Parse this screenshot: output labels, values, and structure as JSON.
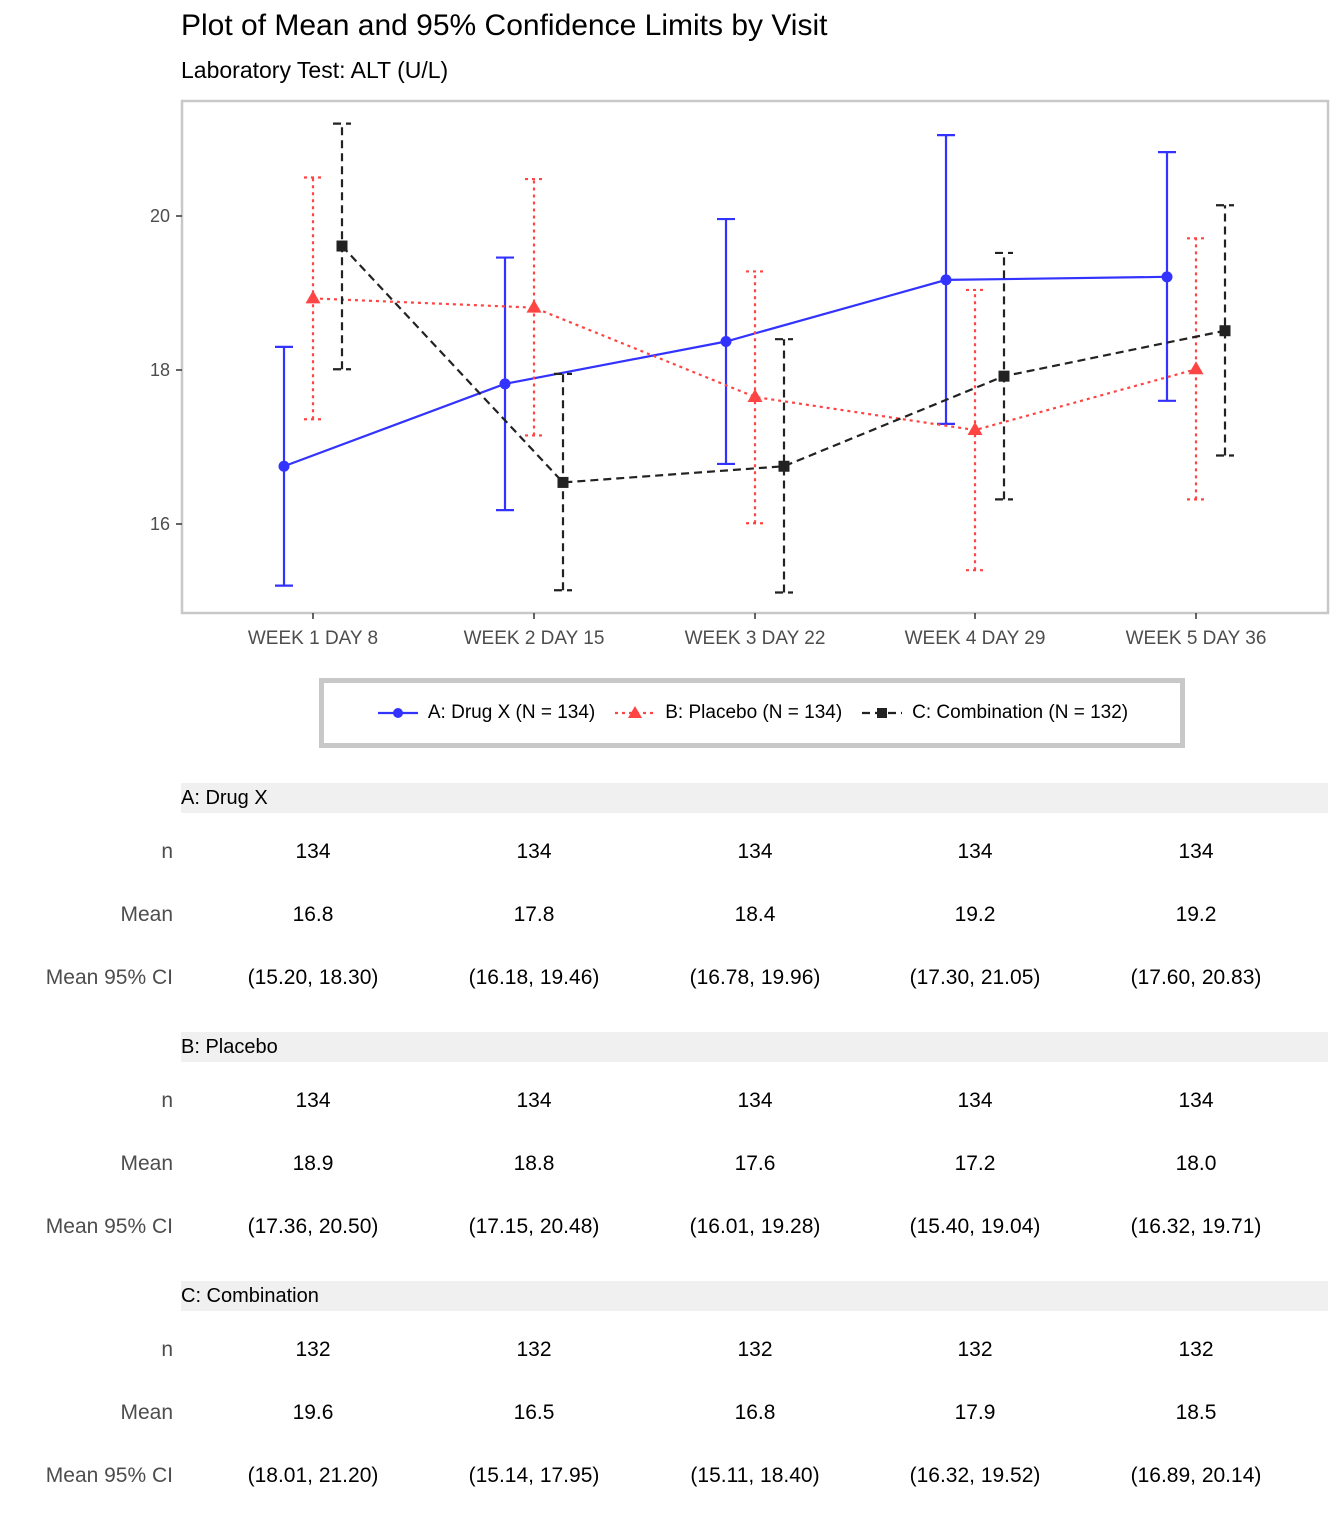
{
  "title": "Plot of Mean and 95% Confidence Limits by Visit",
  "subtitle": "Laboratory Test: ALT (U/L)",
  "chart_data": {
    "type": "line",
    "title": "Plot of Mean and 95% Confidence Limits by Visit",
    "subtitle": "Laboratory Test: ALT (U/L)",
    "xlabel": "",
    "ylabel": "",
    "categories": [
      "WEEK 1 DAY 8",
      "WEEK 2 DAY 15",
      "WEEK 3 DAY 22",
      "WEEK 4 DAY 29",
      "WEEK 5 DAY 36"
    ],
    "y_ticks": [
      "16",
      "18",
      "20"
    ],
    "ylim": [
      14.8,
      21.45
    ],
    "grid": false,
    "legend_position": "bottom",
    "error_bars": "95% confidence limits",
    "series": [
      {
        "name": "A: Drug X (N = 134)",
        "color": "#3333ff",
        "marker": "circle",
        "line_style": "solid",
        "values": [
          16.75,
          17.82,
          18.37,
          19.17,
          19.21
        ],
        "ci_low": [
          15.2,
          16.18,
          16.78,
          17.3,
          17.6
        ],
        "ci_high": [
          18.3,
          19.46,
          19.96,
          21.05,
          20.83
        ]
      },
      {
        "name": "B: Placebo (N = 134)",
        "color": "#ff4444",
        "marker": "triangle",
        "line_style": "dotted",
        "values": [
          18.93,
          18.81,
          17.65,
          17.22,
          18.01
        ],
        "ci_low": [
          17.36,
          17.15,
          16.01,
          15.4,
          16.32
        ],
        "ci_high": [
          20.5,
          20.48,
          19.28,
          19.04,
          19.71
        ]
      },
      {
        "name": "C: Combination (N = 132)",
        "color": "#222222",
        "marker": "square",
        "line_style": "dashed",
        "values": [
          19.61,
          16.54,
          16.75,
          17.92,
          18.51
        ],
        "ci_low": [
          18.01,
          15.14,
          15.11,
          16.32,
          16.89
        ],
        "ci_high": [
          21.2,
          17.95,
          18.4,
          19.52,
          20.14
        ]
      }
    ]
  },
  "table": {
    "row_labels": [
      "n",
      "Mean",
      "Mean 95% CI"
    ],
    "groups": [
      {
        "name": "A: Drug X",
        "n": [
          "134",
          "134",
          "134",
          "134",
          "134"
        ],
        "mean": [
          "16.8",
          "17.8",
          "18.4",
          "19.2",
          "19.2"
        ],
        "ci": [
          "(15.20, 18.30)",
          "(16.18, 19.46)",
          "(16.78, 19.96)",
          "(17.30, 21.05)",
          "(17.60, 20.83)"
        ]
      },
      {
        "name": "B: Placebo",
        "n": [
          "134",
          "134",
          "134",
          "134",
          "134"
        ],
        "mean": [
          "18.9",
          "18.8",
          "17.6",
          "17.2",
          "18.0"
        ],
        "ci": [
          "(17.36, 20.50)",
          "(17.15, 20.48)",
          "(16.01, 19.28)",
          "(15.40, 19.04)",
          "(16.32, 19.71)"
        ]
      },
      {
        "name": "C: Combination",
        "n": [
          "132",
          "132",
          "132",
          "132",
          "132"
        ],
        "mean": [
          "19.6",
          "16.5",
          "16.8",
          "17.9",
          "18.5"
        ],
        "ci": [
          "(18.01, 21.20)",
          "(15.14, 17.95)",
          "(15.11, 18.40)",
          "(16.32, 19.52)",
          "(16.89, 20.14)"
        ]
      }
    ]
  }
}
